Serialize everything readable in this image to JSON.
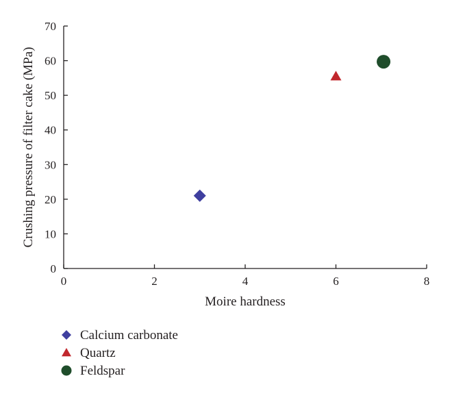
{
  "chart_data": {
    "type": "scatter",
    "title": "",
    "xlabel": "Moire hardness",
    "ylabel": "Crushing pressure of filter cake (MPa)",
    "xlim": [
      0,
      8
    ],
    "ylim": [
      0,
      70
    ],
    "xticks": [
      "0",
      "2",
      "4",
      "6",
      "8"
    ],
    "yticks": [
      "0",
      "10",
      "20",
      "30",
      "40",
      "50",
      "60",
      "70"
    ],
    "grid": false,
    "legend_position": "bottom-left",
    "series": [
      {
        "name": "Calcium carbonate",
        "marker": "diamond",
        "color": "#3f3f9f",
        "x": [
          3
        ],
        "y": [
          21
        ]
      },
      {
        "name": "Quartz",
        "marker": "triangle",
        "color": "#c1272d",
        "x": [
          6
        ],
        "y": [
          55.5
        ]
      },
      {
        "name": "Feldspar",
        "marker": "circle",
        "color": "#1f4d2b",
        "x": [
          7.05
        ],
        "y": [
          59.7
        ]
      }
    ]
  }
}
